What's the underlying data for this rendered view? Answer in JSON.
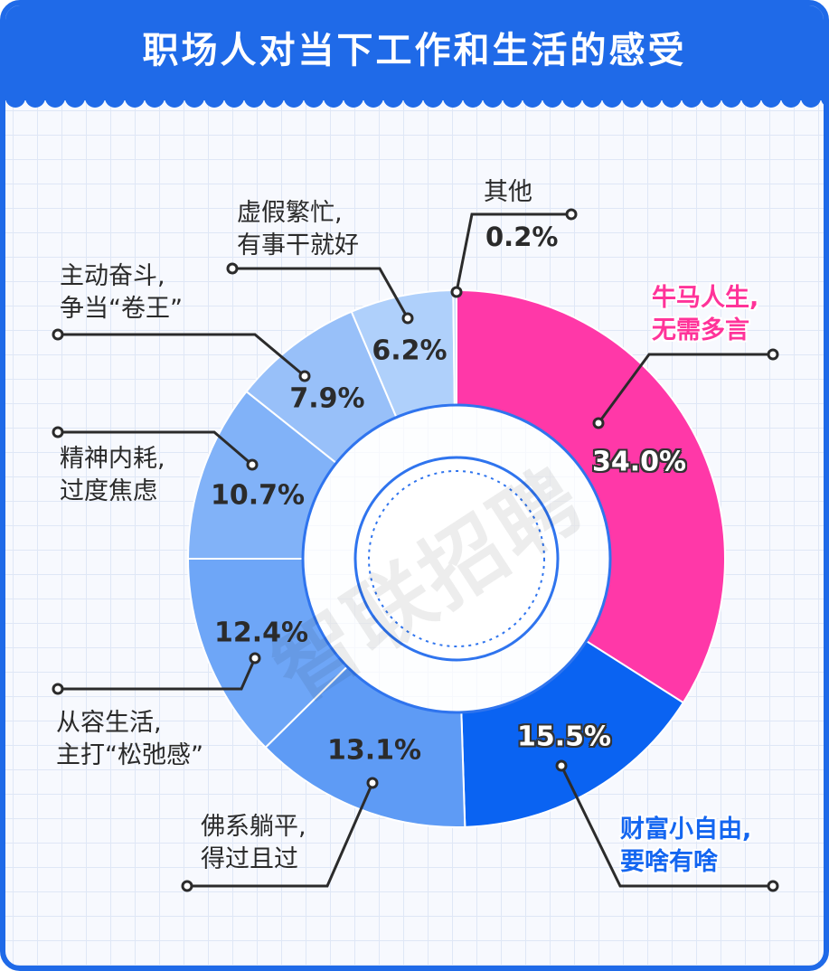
{
  "header": {
    "title": "职场人对当下工作和生活的感受"
  },
  "watermark": "智联招聘",
  "colors": {
    "header": "#1f6ae8",
    "pink": "#ff38a8",
    "dark_blue": "#0a63f2",
    "light_blue": "#a9c9f9"
  },
  "chart_data": {
    "type": "pie",
    "subtype": "donut",
    "title": "职场人对当下工作和生活的感受",
    "slices": [
      {
        "label_line1": "牛马人生,",
        "label_line2": "无需多言",
        "value": 34.0,
        "value_label": "34.0%",
        "color": "#ff38a8"
      },
      {
        "label_line1": "财富小自由,",
        "label_line2": "要啥有啥",
        "value": 15.5,
        "value_label": "15.5%",
        "color": "#0a63f2"
      },
      {
        "label_line1": "佛系躺平,",
        "label_line2": "得过且过",
        "value": 13.1,
        "value_label": "13.1%",
        "color": "#5e9bf5"
      },
      {
        "label_line1": "从容生活,",
        "label_line2": "主打“松弛感”",
        "value": 12.4,
        "value_label": "12.4%",
        "color": "#6ea6f7"
      },
      {
        "label_line1": "精神内耗,",
        "label_line2": "过度焦虑",
        "value": 10.7,
        "value_label": "10.7%",
        "color": "#81b2f8"
      },
      {
        "label_line1": "主动奋斗,",
        "label_line2": "争当“卷王”",
        "value": 7.9,
        "value_label": "7.9%",
        "color": "#98c0f9"
      },
      {
        "label_line1": "虚假繁忙,",
        "label_line2": "有事干就好",
        "value": 6.2,
        "value_label": "6.2%",
        "color": "#afd0fb"
      },
      {
        "label_line1": "其他",
        "label_line2": "",
        "value": 0.2,
        "value_label": "0.2%",
        "color": "#c6dcfc"
      }
    ]
  }
}
